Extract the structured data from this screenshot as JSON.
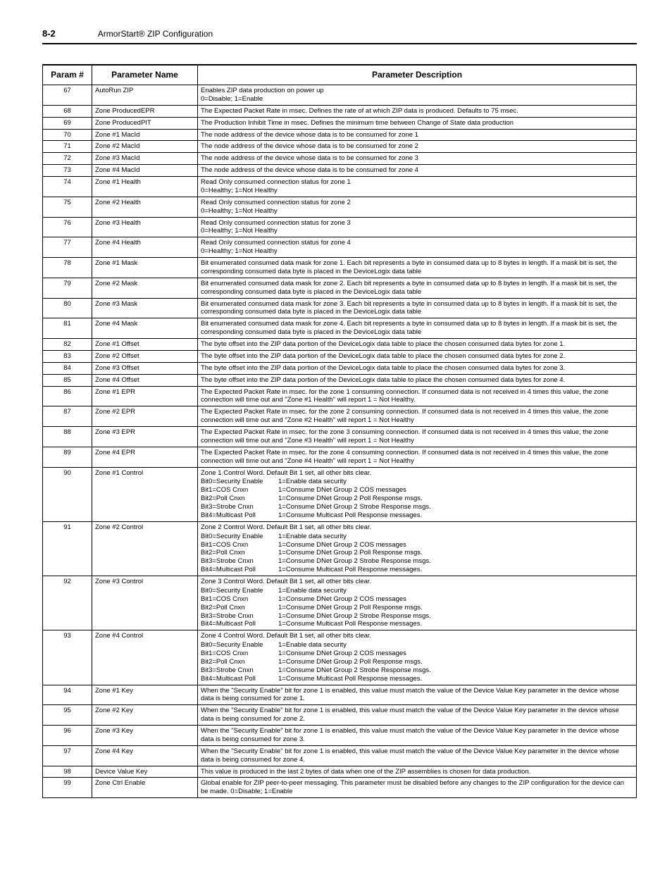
{
  "header": {
    "section": "8-2",
    "title": "ArmorStart® ZIP Configuration"
  },
  "table": {
    "columns": [
      "Param #",
      "Parameter Name",
      "Parameter Description"
    ],
    "rows": [
      {
        "n": "67",
        "name": "AutoRun ZIP",
        "desc": "Enables ZIP data production on power up\n0=Disable;  1=Enable"
      },
      {
        "n": "68",
        "name": "Zone ProducedEPR",
        "desc": "The Expected Packet Rate in msec. Defines the rate of at which ZIP data is produced. Defaults to 75 msec."
      },
      {
        "n": "69",
        "name": "Zone ProducedPIT",
        "desc": "The Production Inhibit Time in msec. Defines the minimum time between Change of State data production"
      },
      {
        "n": "70",
        "name": "Zone #1 MacId",
        "desc": "The node address of the device whose data is to be consumed for zone 1"
      },
      {
        "n": "71",
        "name": "Zone #2 MacId",
        "desc": "The node address of the device whose data is to be consumed for zone 2"
      },
      {
        "n": "72",
        "name": "Zone #3 MacId",
        "desc": "The node address of the device whose data is to be consumed for zone 3"
      },
      {
        "n": "73",
        "name": "Zone #4 MacId",
        "desc": "The node address of the device whose data is to be consumed for zone 4"
      },
      {
        "n": "74",
        "name": "Zone #1 Health",
        "desc": "Read Only consumed connection status for zone 1\n0=Healthy; 1=Not Healthy"
      },
      {
        "n": "75",
        "name": "Zone #2 Health",
        "desc": "Read Only consumed connection status for zone 2\n0=Healthy; 1=Not Healthy"
      },
      {
        "n": "76",
        "name": "Zone #3 Health",
        "desc": "Read Only consumed connection status for zone 3\n0=Healthy; 1=Not Healthy"
      },
      {
        "n": "77",
        "name": "Zone #4 Health",
        "desc": "Read Only consumed connection status for zone 4\n0=Healthy; 1=Not Healthy"
      },
      {
        "n": "78",
        "name": "Zone #1 Mask",
        "desc": "Bit enumerated consumed data mask for zone 1. Each bit represents a byte in consumed data up to 8 bytes in length. If a mask bit is set, the corresponding consumed data byte is placed in the DeviceLogix data table"
      },
      {
        "n": "79",
        "name": "Zone #2 Mask",
        "desc": "Bit enumerated consumed data mask for zone 2. Each bit represents a byte in consumed data up to 8 bytes in length. If a mask bit is set, the corresponding consumed data byte is placed in the DeviceLogix data table"
      },
      {
        "n": "80",
        "name": "Zone #3 Mask",
        "desc": "Bit enumerated consumed data mask for zone 3. Each bit represents a byte in consumed data up to 8 bytes in length. If a mask bit is set, the corresponding consumed data byte is placed in the DeviceLogix data table"
      },
      {
        "n": "81",
        "name": "Zone #4 Mask",
        "desc": "Bit enumerated consumed data mask for zone 4. Each bit represents a byte in consumed data up to 8 bytes in length. If a mask bit is set, the corresponding consumed data byte is placed in the DeviceLogix data table"
      },
      {
        "n": "82",
        "name": "Zone #1 Offset",
        "desc": "The byte offset into the ZIP data portion of the DeviceLogix data table to place the chosen consumed data bytes for zone 1."
      },
      {
        "n": "83",
        "name": "Zone #2 Offset",
        "desc": "The byte offset into the ZIP data portion of the DeviceLogix data table to place the chosen consumed data bytes for zone 2."
      },
      {
        "n": "84",
        "name": "Zone #3 Offset",
        "desc": "The byte offset into the ZIP data portion of the DeviceLogix data table to place the chosen consumed data bytes for zone 3."
      },
      {
        "n": "85",
        "name": "Zone #4 Offset",
        "desc": "The byte offset into the ZIP data portion of the DeviceLogix data table to place the chosen consumed data bytes for zone 4."
      },
      {
        "n": "86",
        "name": "Zone #1 EPR",
        "desc": "The Expected Packet Rate in msec. for the zone 1 consuming connection. If consumed data is not received in 4 times this value, the zone connection will time out and \"Zone #1 Health\" will report 1 = Not Healthy."
      },
      {
        "n": "87",
        "name": "Zone #2 EPR",
        "desc": "The Expected Packet Rate in msec. for the zone 2 consuming connection. If consumed data is not received in 4 times this value, the zone connection will time out and \"Zone #2 Health\" will report 1 = Not Healthy"
      },
      {
        "n": "88",
        "name": "Zone #3 EPR",
        "desc": "The Expected Packet Rate in msec. for the zone 3 consuming connection. If consumed data is not received in 4 times this value, the zone connection will time out and \"Zone #3 Health\" will report 1 = Not Healthy"
      },
      {
        "n": "89",
        "name": "Zone #4 EPR",
        "desc": "The Expected Packet Rate in msec. for the zone 4 consuming connection. If consumed data is not received in 4 times this value, the zone connection will time out and \"Zone #4 Health\" will report 1 = Not Healthy"
      },
      {
        "n": "90",
        "name": "Zone #1 Control",
        "control": {
          "zone": "Zone 1",
          "head": "Control Word.    Default Bit 1 set, all other bits clear."
        }
      },
      {
        "n": "91",
        "name": "Zone #2 Control",
        "control": {
          "zone": "Zone 2",
          "head": "Control Word.    Default Bit 1 set, all other bits clear."
        }
      },
      {
        "n": "92",
        "name": "Zone #3 Control",
        "control": {
          "zone": "Zone 3",
          "head": "Control Word.    Default Bit 1 set, all other bits clear."
        }
      },
      {
        "n": "93",
        "name": "Zone #4 Control",
        "control": {
          "zone": "Zone 4",
          "head": "Control Word.    Default Bit 1 set, all other bits clear."
        }
      },
      {
        "n": "94",
        "name": "Zone #1 Key",
        "desc": "When the \"Security Enable\" bit for zone 1 is enabled, this value must match the value of the Device Value Key parameter in the device whose data is being consumed for zone 1."
      },
      {
        "n": "95",
        "name": "Zone #2 Key",
        "desc": "When the \"Security Enable\" bit for zone 1 is enabled, this value must match the value of the Device Value Key parameter in the device whose data is being consumed for zone 2."
      },
      {
        "n": "96",
        "name": "Zone #3 Key",
        "desc": "When the \"Security Enable\" bit for zone 1 is enabled, this value must match the value of the Device Value Key parameter in the device whose data is being consumed for zone 3."
      },
      {
        "n": "97",
        "name": "Zone #4 Key",
        "desc": "When the \"Security Enable\" bit for zone 1 is enabled, this value must match the value of the Device Value Key parameter in the device whose data is being consumed for zone 4."
      },
      {
        "n": "98",
        "name": "Device Value Key",
        "desc": "This value is produced in the last 2 bytes of data when one of the ZIP assemblies is chosen for data production."
      },
      {
        "n": "99",
        "name": "Zone Ctrl Enable",
        "desc": "Global enable for ZIP peer-to-peer messaging. This parameter must be disabled before any changes to the ZIP configuration for the device can be made.                          0=Disable;  1=Enable"
      }
    ],
    "controlBits": [
      {
        "bit": "Bit0=Security Enable",
        "val": "1=Enable data security"
      },
      {
        "bit": "Bit1=COS Cnxn",
        "val": "1=Consume DNet Group 2 COS messages"
      },
      {
        "bit": "Bit2=Poll Cnxn",
        "val": "1=Consume DNet Group 2 Poll Response msgs."
      },
      {
        "bit": "Bit3=Strobe Cnxn",
        "val": "1=Consume DNet Group 2 Strobe Response msgs."
      },
      {
        "bit": "Bit4=Multicast Poll",
        "val": "1=Consume Multicast Poll Response messages."
      }
    ]
  }
}
